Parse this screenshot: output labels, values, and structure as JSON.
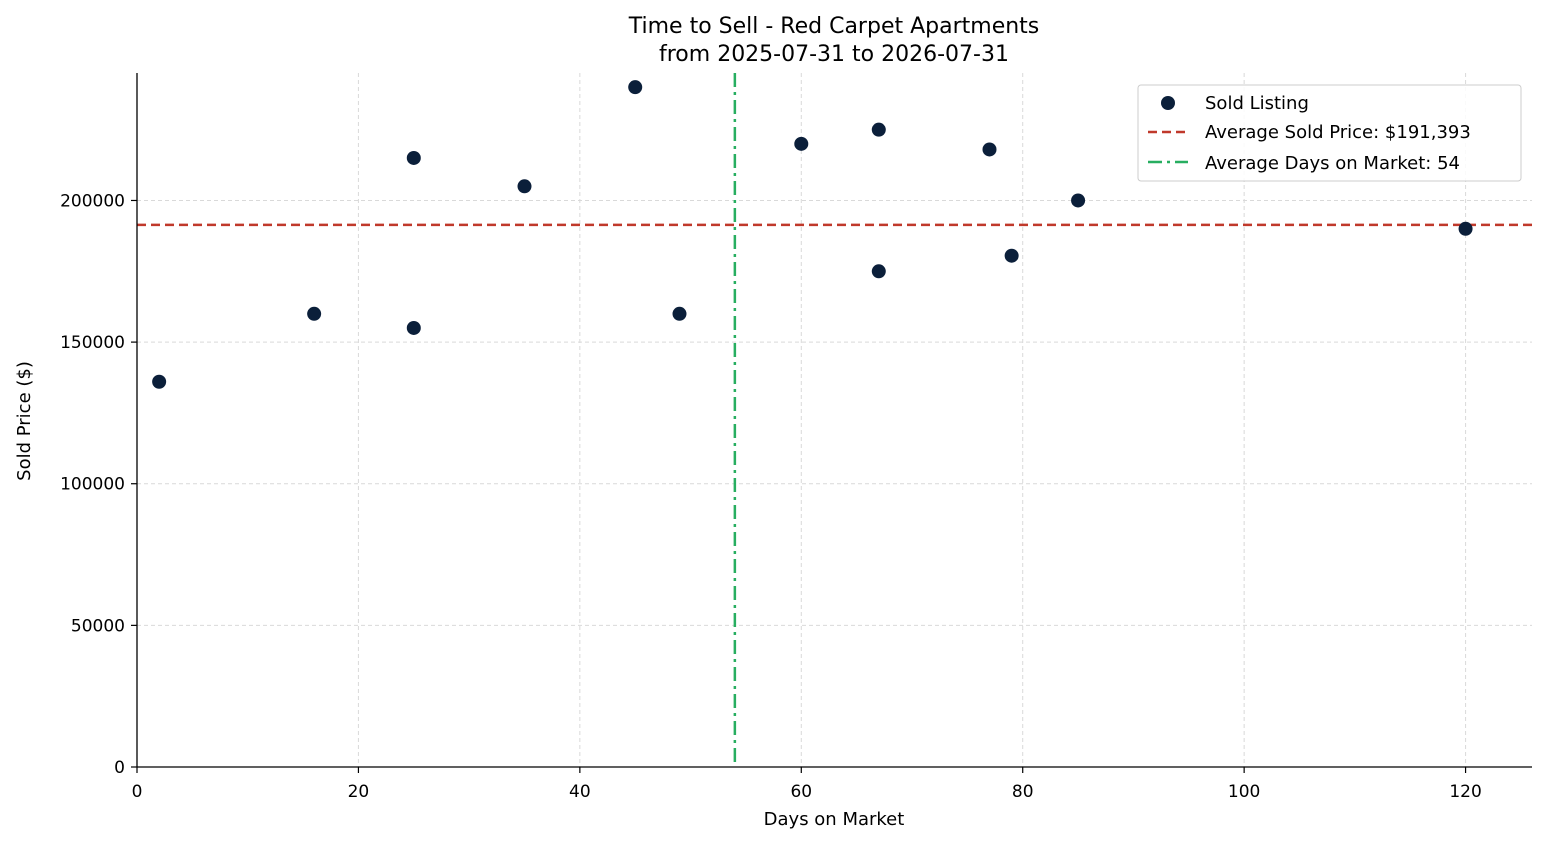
{
  "chart_data": {
    "type": "scatter",
    "title": "Time to Sell - Red Carpet Apartments",
    "subtitle": "from 2025-07-31 to 2026-07-31",
    "xlabel": "Days on Market",
    "ylabel": "Sold Price ($)",
    "xlim": [
      0,
      126
    ],
    "ylim": [
      0,
      245000
    ],
    "x_ticks": [
      0,
      20,
      40,
      60,
      80,
      100,
      120
    ],
    "y_ticks": [
      0,
      50000,
      100000,
      150000,
      200000
    ],
    "grid": true,
    "legend_position": "top-right",
    "series": [
      {
        "name": "Sold Listing",
        "color": "#0b1f3a",
        "x": [
          2,
          16,
          25,
          25,
          35,
          45,
          49,
          60,
          67,
          67,
          77,
          79,
          85,
          120
        ],
        "y": [
          136000,
          160000,
          215000,
          155000,
          205000,
          240000,
          160000,
          220000,
          225000,
          175000,
          218000,
          180500,
          200000,
          190000
        ]
      }
    ],
    "reference_lines": [
      {
        "name": "Average Sold Price: $191,393",
        "orientation": "horizontal",
        "value": 191393,
        "color": "#c0392b",
        "style": "dashed"
      },
      {
        "name": "Average Days on Market: 54",
        "orientation": "vertical",
        "value": 54,
        "color": "#27ae60",
        "style": "dashdot"
      }
    ]
  }
}
